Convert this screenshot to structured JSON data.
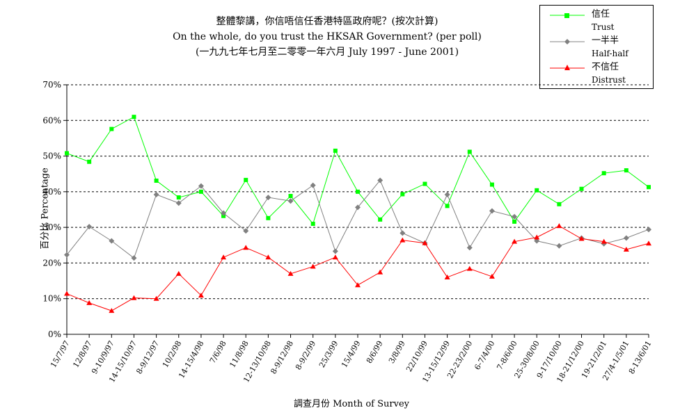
{
  "chart_data": {
    "type": "line",
    "title": "整體黎講，你信唔信任香港特區政府呢？(按次計算)",
    "subtitle": "On the whole, do you trust the HKSAR Government? (per poll)",
    "subtitle2": "(一九九七年七月至二零零一年六月 July 1997 - June 2001)",
    "xlabel": "調查月份 Month of Survey",
    "ylabel": "百分比 Percentage",
    "ylim": [
      0,
      70
    ],
    "yticks": [
      "0%",
      "10%",
      "20%",
      "30%",
      "40%",
      "50%",
      "60%",
      "70%"
    ],
    "grid": "horizontal-dashed",
    "legend_position": "top-right",
    "categories": [
      "15/7/97",
      "12/8/97",
      "9-10/9/97",
      "14-15/10/97",
      "8-9/12/97",
      "10/2/98",
      "14-15/4/98",
      "7/6/98",
      "11/8/98",
      "12-13/10/98",
      "8-9/12/98",
      "8-9/2/99",
      "25/3/99",
      "15/4/99",
      "8/6/99",
      "3/8/99",
      "22/10/99",
      "13-15/12/99",
      "22-23/2/00",
      "6-7/4/00",
      "7-8/6/00",
      "25-30/8/00",
      "9-17/10/00",
      "18-21/12/00",
      "19-21/2/01",
      "27/4-1/5/01",
      "8-13/6/01"
    ],
    "series": [
      {
        "name": "信任",
        "name_en": "Trust",
        "color": "#00ff00",
        "marker": "square",
        "values": [
          50.8,
          48.4,
          57.6,
          61,
          43.1,
          38.4,
          40,
          33.2,
          43.3,
          32.6,
          38.8,
          31,
          51.5,
          40,
          32.2,
          39.3,
          42.2,
          36,
          51.2,
          42,
          31.6,
          40.4,
          36.5,
          40.8,
          45.2,
          46,
          41.3
        ]
      },
      {
        "name": "一半半",
        "name_en": "Half-half",
        "color": "#808080",
        "marker": "diamond",
        "values": [
          22.3,
          30.2,
          26.2,
          21.4,
          39.2,
          36.8,
          41.6,
          34,
          29,
          38.4,
          37.4,
          41.8,
          23.3,
          35.6,
          43.2,
          28.4,
          25.6,
          39.2,
          24.3,
          34.6,
          33,
          26.2,
          24.8,
          27,
          25.4,
          27,
          29.4
        ]
      },
      {
        "name": "不信任",
        "name_en": "Distrust",
        "color": "#ff0000",
        "marker": "triangle",
        "values": [
          11.4,
          8.8,
          6.6,
          10.2,
          10,
          17,
          10.9,
          21.6,
          24.3,
          21.6,
          17,
          19,
          21.6,
          13.8,
          17.4,
          26.4,
          25.6,
          16,
          18.4,
          16.2,
          26,
          27.2,
          30.4,
          26.8,
          26,
          23.8,
          25.5
        ]
      }
    ]
  }
}
